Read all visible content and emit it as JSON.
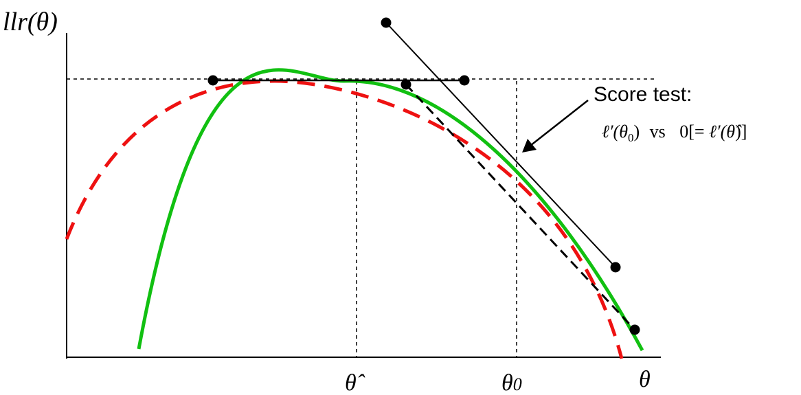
{
  "y_axis_label": "llr(θ)",
  "x_axis_label": "θ",
  "theta_hat_label": "θ̂",
  "theta0_label": "θ0",
  "theta0_symbol": "θ",
  "theta0_subscript": "0",
  "annotation": {
    "title": "Score test:",
    "formula": "ℓ′(θ0) vs 0[= ℓ′(θ̂)]",
    "formula_parts": {
      "lhs_fn": "ℓ′(",
      "lhs_var": "θ",
      "lhs_sub": "0",
      "lhs_close": ")",
      "vs": "vs",
      "rhs_open": "0[= ",
      "rhs_fn": "ℓ′(",
      "rhs_var": "θ̂",
      "rhs_close": ")]"
    }
  },
  "colors": {
    "axes": "#000000",
    "green_curve": "#11c011",
    "red_dashed_curve": "#ee1111",
    "tangent_lines": "#000000",
    "reference_lines": "#000000"
  }
}
